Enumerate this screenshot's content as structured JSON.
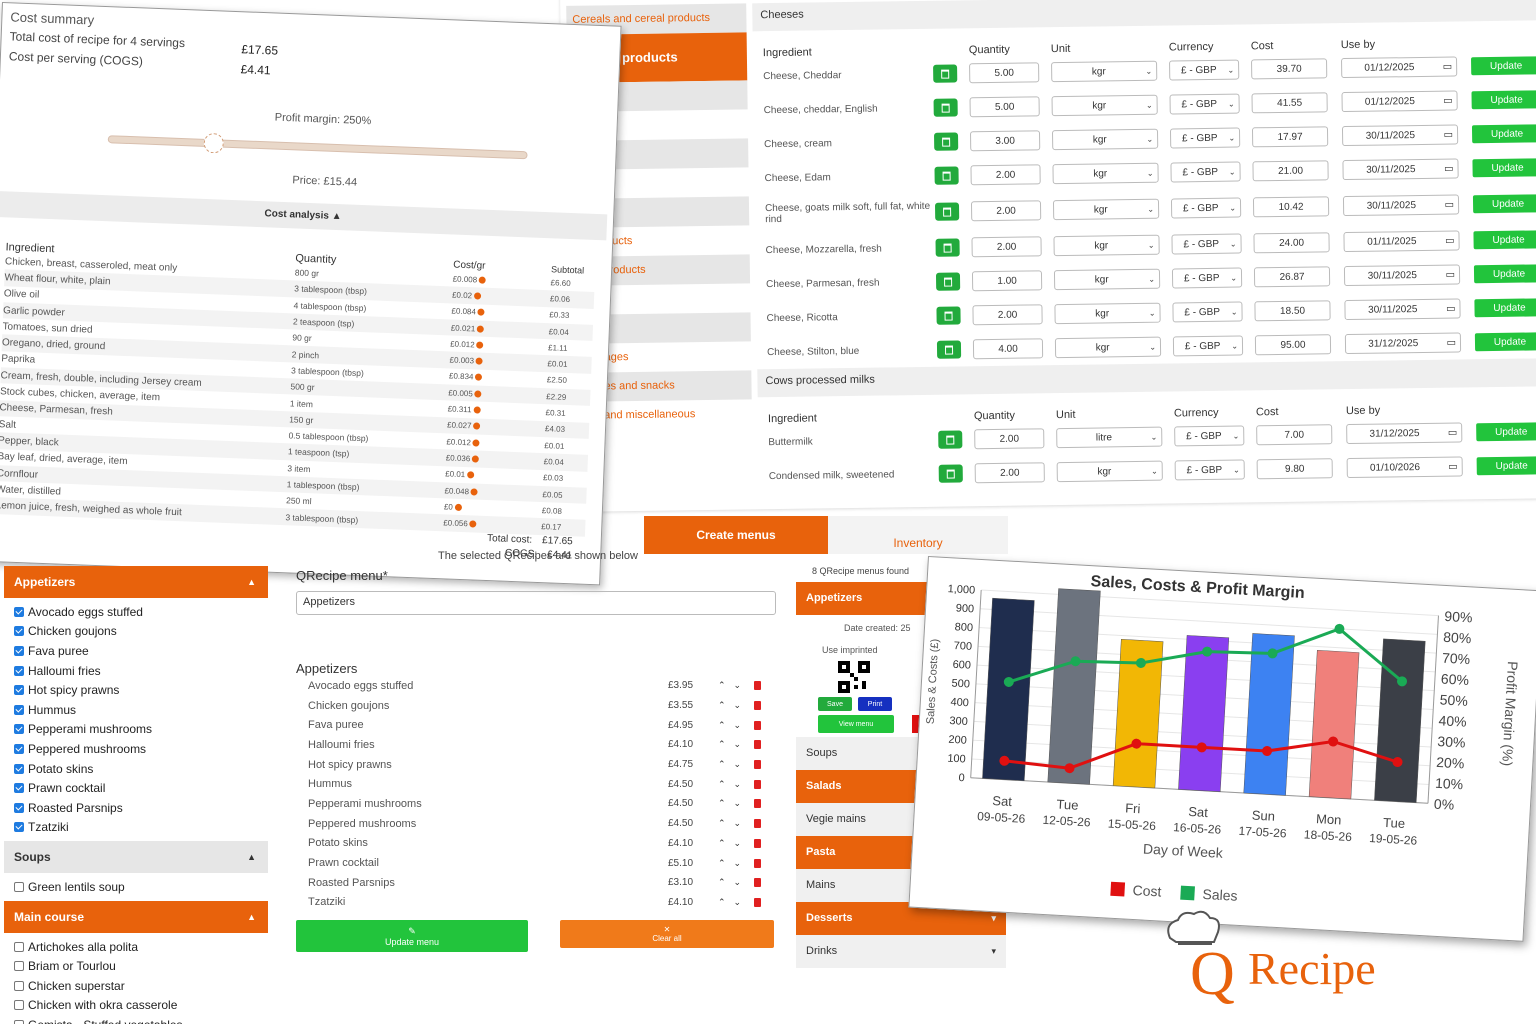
{
  "ingredients_panel": {
    "profile_label": "Profile",
    "categories": [
      {
        "label": "Cereals and cereal products",
        "state": "shaded"
      },
      {
        "label": "nd milk products",
        "state": "active"
      },
      {
        "label": "",
        "state": "shaded"
      },
      {
        "label": "s",
        "state": "plain"
      },
      {
        "label": "",
        "state": "shaded"
      },
      {
        "label": "eeds",
        "state": "plain"
      },
      {
        "label": "spices",
        "state": "shaded"
      },
      {
        "label": "sh products",
        "state": "plain"
      },
      {
        "label": "meat products",
        "state": "shaded"
      },
      {
        "label": "ils",
        "state": "plain"
      },
      {
        "label": "s",
        "state": "shaded"
      },
      {
        "label": "beverages",
        "state": "plain"
      },
      {
        "label": "eserves and snacks",
        "state": "shaded"
      },
      {
        "label": "uces and miscellaneous",
        "state": "plain"
      }
    ],
    "headers": {
      "ingredient": "Ingredient",
      "quantity": "Quantity",
      "unit": "Unit",
      "currency": "Currency",
      "cost": "Cost",
      "use_by": "Use by"
    },
    "update_label": "Update",
    "sections": [
      {
        "title": "Cheeses",
        "rows": [
          {
            "name": "Cheese, Cheddar",
            "qty": "5.00",
            "unit": "kgr",
            "currency": "£ - GBP",
            "cost": "39.70",
            "use_by": "01/12/2025"
          },
          {
            "name": "Cheese, cheddar, English",
            "qty": "5.00",
            "unit": "kgr",
            "currency": "£ - GBP",
            "cost": "41.55",
            "use_by": "01/12/2025"
          },
          {
            "name": "Cheese, cream",
            "qty": "3.00",
            "unit": "kgr",
            "currency": "£ - GBP",
            "cost": "17.97",
            "use_by": "30/11/2025"
          },
          {
            "name": "Cheese, Edam",
            "qty": "2.00",
            "unit": "kgr",
            "currency": "£ - GBP",
            "cost": "21.00",
            "use_by": "30/11/2025"
          },
          {
            "name": "Cheese, goats milk soft, full fat, white rind",
            "qty": "2.00",
            "unit": "kgr",
            "currency": "£ - GBP",
            "cost": "10.42",
            "use_by": "30/11/2025"
          },
          {
            "name": "Cheese, Mozzarella, fresh",
            "qty": "2.00",
            "unit": "kgr",
            "currency": "£ - GBP",
            "cost": "24.00",
            "use_by": "01/11/2025"
          },
          {
            "name": "Cheese, Parmesan, fresh",
            "qty": "1.00",
            "unit": "kgr",
            "currency": "£ - GBP",
            "cost": "26.87",
            "use_by": "30/11/2025"
          },
          {
            "name": "Cheese, Ricotta",
            "qty": "2.00",
            "unit": "kgr",
            "currency": "£ - GBP",
            "cost": "18.50",
            "use_by": "30/11/2025"
          },
          {
            "name": "Cheese, Stilton, blue",
            "qty": "4.00",
            "unit": "kgr",
            "currency": "£ - GBP",
            "cost": "95.00",
            "use_by": "31/12/2025"
          }
        ]
      },
      {
        "title": "Cows processed milks",
        "rows": [
          {
            "name": "Buttermilk",
            "qty": "2.00",
            "unit": "litre",
            "currency": "£ - GBP",
            "cost": "7.00",
            "use_by": "31/12/2025"
          },
          {
            "name": "Condensed milk, sweetened",
            "qty": "2.00",
            "unit": "kgr",
            "currency": "£ - GBP",
            "cost": "9.80",
            "use_by": "01/10/2026"
          }
        ]
      }
    ]
  },
  "cost_summary": {
    "title": "Cost summary",
    "total_label": "Total cost of recipe for 4 servings",
    "total_value": "£17.65",
    "per_serving_label": "Cost per serving (COGS)",
    "per_serving_value": "£4.41",
    "profit_margin": "Profit margin: 250%",
    "profit_margin_value": 250,
    "price": "Price: £15.44",
    "analysis_label": "Cost analysis ▲",
    "headers": {
      "ingredient": "Ingredient",
      "quantity": "Quantity",
      "cost_gr": "Cost/gr",
      "subtotal": "Subtotal"
    },
    "rows": [
      {
        "ingredient": "Chicken, breast, casseroled, meat only",
        "qty": "800 gr",
        "cost": "£0.008",
        "sub": "£6.60"
      },
      {
        "ingredient": "Wheat flour, white, plain",
        "qty": "3 tablespoon (tbsp)",
        "cost": "£0.02",
        "sub": "£0.06"
      },
      {
        "ingredient": "Olive oil",
        "qty": "4 tablespoon (tbsp)",
        "cost": "£0.084",
        "sub": "£0.33"
      },
      {
        "ingredient": "Garlic powder",
        "qty": "2 teaspoon (tsp)",
        "cost": "£0.021",
        "sub": "£0.04"
      },
      {
        "ingredient": "Tomatoes, sun dried",
        "qty": "90 gr",
        "cost": "£0.012",
        "sub": "£1.11"
      },
      {
        "ingredient": "Oregano, dried, ground",
        "qty": "2 pinch",
        "cost": "£0.003",
        "sub": "£0.01"
      },
      {
        "ingredient": "Paprika",
        "qty": "3 tablespoon (tbsp)",
        "cost": "£0.834",
        "sub": "£2.50"
      },
      {
        "ingredient": "Cream, fresh, double, including Jersey cream",
        "qty": "500 gr",
        "cost": "£0.005",
        "sub": "£2.29"
      },
      {
        "ingredient": "Stock cubes, chicken, average, item",
        "qty": "1 item",
        "cost": "£0.311",
        "sub": "£0.31"
      },
      {
        "ingredient": "Cheese, Parmesan, fresh",
        "qty": "150 gr",
        "cost": "£0.027",
        "sub": "£4.03"
      },
      {
        "ingredient": "Salt",
        "qty": "0.5 tablespoon (tbsp)",
        "cost": "£0.012",
        "sub": "£0.01"
      },
      {
        "ingredient": "Pepper, black",
        "qty": "1 teaspoon (tsp)",
        "cost": "£0.036",
        "sub": "£0.04"
      },
      {
        "ingredient": "Bay leaf, dried, average, item",
        "qty": "3 item",
        "cost": "£0.01",
        "sub": "£0.03"
      },
      {
        "ingredient": "Cornflour",
        "qty": "1 tablespoon (tbsp)",
        "cost": "£0.048",
        "sub": "£0.05"
      },
      {
        "ingredient": "Water, distilled",
        "qty": "250 ml",
        "cost": "£0",
        "sub": "£0.08"
      },
      {
        "ingredient": "Lemon juice, fresh, weighed as whole fruit",
        "qty": "3 tablespoon (tbsp)",
        "cost": "£0.056",
        "sub": "£0.17"
      }
    ],
    "total_cost_label": "Total cost:",
    "total_cost_value": "£17.65",
    "cogs_label": "COGS:",
    "cogs_value": "£4.41"
  },
  "left_list": {
    "groups": [
      {
        "title": "Appetizers",
        "style": "orange",
        "items": [
          {
            "label": "Avocado eggs stuffed",
            "checked": true
          },
          {
            "label": "Chicken goujons",
            "checked": true
          },
          {
            "label": "Fava puree",
            "checked": true
          },
          {
            "label": "Halloumi fries",
            "checked": true
          },
          {
            "label": "Hot spicy prawns",
            "checked": true
          },
          {
            "label": "Hummus",
            "checked": true
          },
          {
            "label": "Pepperami mushrooms",
            "checked": true
          },
          {
            "label": "Peppered mushrooms",
            "checked": true
          },
          {
            "label": "Potato skins",
            "checked": true
          },
          {
            "label": "Prawn cocktail",
            "checked": true
          },
          {
            "label": "Roasted Parsnips",
            "checked": true
          },
          {
            "label": "Tzatziki",
            "checked": true
          }
        ]
      },
      {
        "title": "Soups",
        "style": "grey",
        "items": [
          {
            "label": "Green lentils soup",
            "checked": false
          }
        ]
      },
      {
        "title": "Main course",
        "style": "orange",
        "items": [
          {
            "label": "Artichokes alla polita",
            "checked": false
          },
          {
            "label": "Briam or Tourlou",
            "checked": false
          },
          {
            "label": "Chicken superstar",
            "checked": false
          },
          {
            "label": "Chicken with okra casserole",
            "checked": false
          },
          {
            "label": "Gemista - Stuffed vegetables",
            "checked": false
          },
          {
            "label": "Giant beans with spinach and cheese",
            "checked": false
          }
        ]
      }
    ]
  },
  "menu_center": {
    "selected_note": "The selected QRecipes are shown below",
    "title": "QRecipe menu*",
    "input_value": "Appetizers",
    "section": "Appetizers",
    "items": [
      {
        "name": "Avocado eggs stuffed",
        "price": "£3.95"
      },
      {
        "name": "Chicken goujons",
        "price": "£3.55"
      },
      {
        "name": "Fava puree",
        "price": "£4.95"
      },
      {
        "name": "Halloumi fries",
        "price": "£4.10"
      },
      {
        "name": "Hot spicy prawns",
        "price": "£4.75"
      },
      {
        "name": "Hummus",
        "price": "£4.50"
      },
      {
        "name": "Pepperami mushrooms",
        "price": "£4.50"
      },
      {
        "name": "Peppered mushrooms",
        "price": "£4.50"
      },
      {
        "name": "Potato skins",
        "price": "£4.10"
      },
      {
        "name": "Prawn cocktail",
        "price": "£5.10"
      },
      {
        "name": "Roasted Parsnips",
        "price": "£3.10"
      },
      {
        "name": "Tzatziki",
        "price": "£4.10"
      }
    ],
    "update_btn": "Update menu",
    "clear_btn": "Clear all"
  },
  "tabs": {
    "create": "Create menus",
    "inventory": "Inventory"
  },
  "menus_panel": {
    "found": "8 QRecipe menus found",
    "appetizers": "Appetizers",
    "date_created": "Date created: 25",
    "use_imprinted": "Use imprinted",
    "save": "Save",
    "print": "Print",
    "view_menu": "View menu",
    "menus": [
      {
        "label": "Soups",
        "style": "grey",
        "arrow": ""
      },
      {
        "label": "Salads",
        "style": "orange",
        "arrow": ""
      },
      {
        "label": "Vegie mains",
        "style": "grey",
        "arrow": ""
      },
      {
        "label": "Pasta",
        "style": "orange",
        "arrow": ""
      },
      {
        "label": "Mains",
        "style": "grey",
        "arrow": "▾"
      },
      {
        "label": "Desserts",
        "style": "orange",
        "arrow": "▾"
      },
      {
        "label": "Drinks",
        "style": "grey",
        "arrow": "▾"
      }
    ]
  },
  "chart_data": {
    "type": "bar",
    "title": "Sales, Costs & Profit Margin",
    "xlabel": "Day of Week",
    "ylabel": "Sales & Costs (£)",
    "y2label": "Profit Margin (%)",
    "categories": [
      "Sat 09-05-26",
      "Tue 12-05-26",
      "Fri 15-05-26",
      "Sat 16-05-26",
      "Sun 17-05-26",
      "Mon 18-05-26",
      "Tue 19-05-26"
    ],
    "day_labels": [
      "Sat",
      "Tue",
      "Fri",
      "Sat",
      "Sun",
      "Mon",
      "Tue"
    ],
    "date_labels": [
      "09-05-26",
      "12-05-26",
      "15-05-26",
      "16-05-26",
      "17-05-26",
      "18-05-26",
      "19-05-26"
    ],
    "bar_values": [
      960,
      1030,
      780,
      820,
      850,
      780,
      860
    ],
    "bar_colors": [
      "#1f2d4e",
      "#6c737e",
      "#f2b705",
      "#8a3ff0",
      "#3d82f2",
      "#f0807b",
      "#3b3f47"
    ],
    "ylim": [
      0,
      1000
    ],
    "yticks": [
      "0",
      "100",
      "200",
      "300",
      "400",
      "500",
      "600",
      "700",
      "800",
      "900",
      "1,000"
    ],
    "y2lim": [
      0,
      90
    ],
    "y2ticks": [
      "0%",
      "10%",
      "20%",
      "30%",
      "40%",
      "50%",
      "60%",
      "70%",
      "80%",
      "90%"
    ],
    "series": [
      {
        "name": "Cost",
        "color": "#e01010",
        "values": [
          100,
          80,
          230,
          230,
          230,
          300,
          210
        ]
      },
      {
        "name": "Sales",
        "color": "#1aaa55",
        "values": [
          520,
          650,
          660,
          740,
          750,
          900,
          640
        ]
      }
    ],
    "legend": "bottom"
  },
  "logo": {
    "text": "QRecipe"
  }
}
